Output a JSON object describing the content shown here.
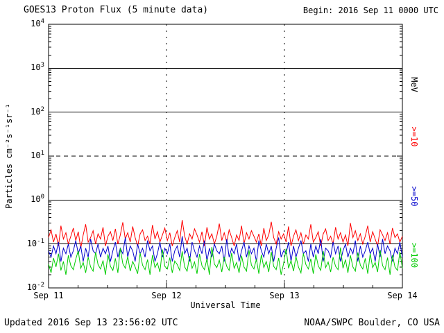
{
  "header": {
    "title": "GOES13 Proton Flux (5 minute data)",
    "begin_label": "Begin: 2016 Sep 11 0000 UTC"
  },
  "footer": {
    "updated": "Updated 2016 Sep 13 23:56:02 UTC",
    "source": "NOAA/SWPC Boulder, CO USA"
  },
  "axes": {
    "y_label": "Particles cm⁻²s⁻¹sr⁻¹",
    "x_label": "Universal Time"
  },
  "right_labels": [
    {
      "text": "MeV",
      "color": "#000000"
    },
    {
      "text": ">=10",
      "color": "#ff0000"
    },
    {
      "text": ">=50",
      "color": "#0000cc"
    },
    {
      "text": ">=100",
      "color": "#00cc00"
    }
  ],
  "chart_data": {
    "type": "line",
    "title": "GOES13 Proton Flux (5 minute data)",
    "xlabel": "Universal Time",
    "ylabel": "Particles cm^-2 s^-1 sr^-1",
    "y_scale": "log",
    "ylim": [
      0.01,
      10000
    ],
    "y_ticks_exponents": [
      4,
      3,
      2,
      1,
      0,
      -1,
      -2
    ],
    "x_tick_labels": [
      "Sep 11",
      "Sep 12",
      "Sep 13",
      "Sep 14"
    ],
    "x_range_utc": [
      "2016 Sep 11 0000 UTC",
      "2016 Sep 14 0000 UTC"
    ],
    "grid": {
      "horizontal_solid_exponents": [
        3,
        2,
        0,
        -1
      ],
      "horizontal_dashed_exponents": [
        1
      ],
      "vertical_dotted_day_indices": [
        1,
        2
      ]
    },
    "legend_position": "right",
    "series": [
      {
        "name": ">=10 MeV",
        "color": "#ff0000",
        "values": [
          0.14,
          0.21,
          0.11,
          0.17,
          0.09,
          0.26,
          0.13,
          0.18,
          0.1,
          0.15,
          0.23,
          0.12,
          0.19,
          0.08,
          0.16,
          0.28,
          0.11,
          0.14,
          0.2,
          0.1,
          0.17,
          0.13,
          0.24,
          0.09,
          0.15,
          0.19,
          0.12,
          0.22,
          0.1,
          0.16,
          0.31,
          0.13,
          0.18,
          0.11,
          0.25,
          0.14,
          0.09,
          0.17,
          0.21,
          0.12,
          0.15,
          0.1,
          0.27,
          0.13,
          0.19,
          0.11,
          0.16,
          0.23,
          0.12,
          0.18,
          0.09,
          0.14,
          0.2,
          0.11,
          0.35,
          0.15,
          0.1,
          0.17,
          0.13,
          0.22,
          0.16,
          0.11,
          0.19,
          0.09,
          0.24,
          0.13,
          0.17,
          0.1,
          0.15,
          0.29,
          0.12,
          0.18,
          0.11,
          0.21,
          0.14,
          0.09,
          0.16,
          0.12,
          0.26,
          0.1,
          0.18,
          0.13,
          0.2,
          0.15,
          0.11,
          0.17,
          0.09,
          0.23,
          0.12,
          0.16,
          0.32,
          0.14,
          0.1,
          0.19,
          0.13,
          0.17,
          0.11,
          0.25,
          0.09,
          0.15,
          0.21,
          0.12,
          0.18,
          0.1,
          0.16,
          0.13,
          0.28,
          0.11,
          0.14,
          0.19,
          0.09,
          0.17,
          0.22,
          0.12,
          0.15,
          0.1,
          0.24,
          0.13,
          0.18,
          0.11,
          0.16,
          0.09,
          0.3,
          0.14,
          0.2,
          0.12,
          0.17,
          0.1,
          0.15,
          0.26,
          0.11,
          0.19,
          0.13,
          0.09,
          0.21,
          0.16,
          0.12,
          0.18,
          0.1,
          0.23,
          0.14,
          0.17,
          0.11,
          0.15
        ]
      },
      {
        "name": ">=50 MeV",
        "color": "#0000cc",
        "values": [
          0.07,
          0.05,
          0.09,
          0.06,
          0.11,
          0.04,
          0.08,
          0.06,
          0.1,
          0.05,
          0.07,
          0.12,
          0.06,
          0.09,
          0.04,
          0.08,
          0.05,
          0.13,
          0.07,
          0.06,
          0.1,
          0.05,
          0.08,
          0.06,
          0.09,
          0.04,
          0.07,
          0.11,
          0.05,
          0.08,
          0.06,
          0.14,
          0.05,
          0.09,
          0.07,
          0.04,
          0.1,
          0.06,
          0.08,
          0.05,
          0.12,
          0.07,
          0.09,
          0.04,
          0.06,
          0.11,
          0.05,
          0.08,
          0.06,
          0.1,
          0.04,
          0.07,
          0.09,
          0.05,
          0.15,
          0.06,
          0.08,
          0.04,
          0.11,
          0.07,
          0.05,
          0.09,
          0.06,
          0.12,
          0.04,
          0.08,
          0.05,
          0.1,
          0.07,
          0.06,
          0.09,
          0.04,
          0.13,
          0.05,
          0.08,
          0.06,
          0.1,
          0.04,
          0.07,
          0.11,
          0.05,
          0.09,
          0.06,
          0.08,
          0.04,
          0.12,
          0.07,
          0.05,
          0.1,
          0.06,
          0.09,
          0.04,
          0.08,
          0.14,
          0.05,
          0.07,
          0.06,
          0.11,
          0.04,
          0.09,
          0.05,
          0.08,
          0.12,
          0.06,
          0.07,
          0.04,
          0.1,
          0.05,
          0.09,
          0.06,
          0.13,
          0.04,
          0.08,
          0.07,
          0.05,
          0.11,
          0.06,
          0.09,
          0.04,
          0.07,
          0.1,
          0.05,
          0.08,
          0.06,
          0.12,
          0.04,
          0.09,
          0.05,
          0.07,
          0.11,
          0.06,
          0.08,
          0.04,
          0.1,
          0.05,
          0.13,
          0.06,
          0.09,
          0.07,
          0.04,
          0.08,
          0.06,
          0.11,
          0.05
        ]
      },
      {
        "name": ">=100 MeV",
        "color": "#00cc00",
        "values": [
          0.035,
          0.022,
          0.048,
          0.03,
          0.06,
          0.025,
          0.04,
          0.02,
          0.055,
          0.032,
          0.026,
          0.045,
          0.07,
          0.028,
          0.038,
          0.022,
          0.05,
          0.03,
          0.024,
          0.065,
          0.034,
          0.027,
          0.042,
          0.02,
          0.058,
          0.031,
          0.025,
          0.047,
          0.022,
          0.08,
          0.036,
          0.028,
          0.052,
          0.024,
          0.04,
          0.03,
          0.021,
          0.062,
          0.033,
          0.026,
          0.044,
          0.02,
          0.056,
          0.029,
          0.037,
          0.023,
          0.075,
          0.031,
          0.027,
          0.049,
          0.022,
          0.041,
          0.034,
          0.025,
          0.068,
          0.03,
          0.024,
          0.053,
          0.028,
          0.039,
          0.021,
          0.059,
          0.032,
          0.026,
          0.046,
          0.02,
          0.085,
          0.035,
          0.029,
          0.043,
          0.023,
          0.051,
          0.031,
          0.025,
          0.063,
          0.028,
          0.038,
          0.022,
          0.054,
          0.03,
          0.024,
          0.072,
          0.033,
          0.027,
          0.045,
          0.021,
          0.057,
          0.029,
          0.04,
          0.023,
          0.066,
          0.031,
          0.026,
          0.048,
          0.02,
          0.036,
          0.078,
          0.028,
          0.042,
          0.024,
          0.052,
          0.03,
          0.022,
          0.061,
          0.034,
          0.027,
          0.046,
          0.021,
          0.058,
          0.032,
          0.025,
          0.069,
          0.029,
          0.039,
          0.023,
          0.05,
          0.031,
          0.026,
          0.083,
          0.028,
          0.044,
          0.022,
          0.055,
          0.03,
          0.024,
          0.064,
          0.033,
          0.027,
          0.047,
          0.021,
          0.06,
          0.029,
          0.038,
          0.023,
          0.073,
          0.032,
          0.026,
          0.049,
          0.02,
          0.056,
          0.03,
          0.025,
          0.067,
          0.028
        ]
      }
    ]
  }
}
